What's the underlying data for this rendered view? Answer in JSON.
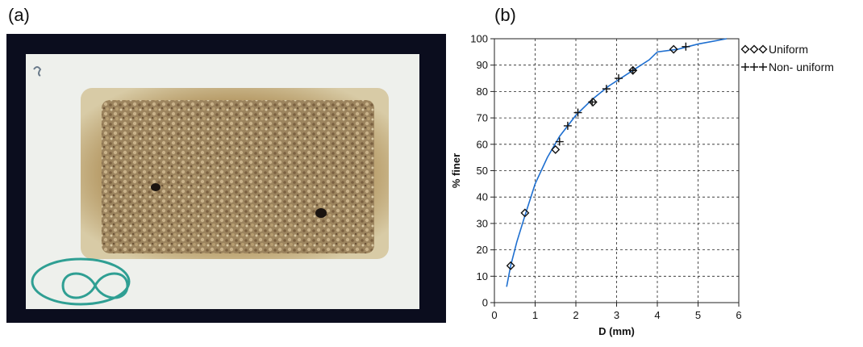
{
  "panels": {
    "a_label": "(a)",
    "b_label": "(b)"
  },
  "photo": {
    "subject": "sand sample on white board",
    "colors": {
      "background": "#0b0d1e",
      "board": "#eef0ec",
      "stain": "#b69a66",
      "sand": "#a48a62",
      "marker": "#2f9f93"
    }
  },
  "chart_data": {
    "type": "line",
    "xlabel": "D (mm)",
    "ylabel": "% finer",
    "xlim": [
      0,
      6
    ],
    "ylim": [
      0,
      100
    ],
    "xticks": [
      0,
      1,
      2,
      3,
      4,
      5,
      6
    ],
    "yticks": [
      0,
      10,
      20,
      30,
      40,
      50,
      60,
      70,
      80,
      90,
      100
    ],
    "grid": "dashed",
    "legend_position": "top-right, outside plot",
    "curve": {
      "color": "#1e6fd0",
      "x": [
        0.3,
        0.4,
        0.55,
        0.75,
        1.0,
        1.3,
        1.6,
        2.0,
        2.4,
        2.8,
        3.2,
        3.5,
        3.8,
        4.0,
        4.5,
        5.0,
        5.7
      ],
      "y": [
        6,
        14,
        23,
        33,
        45,
        55,
        63,
        71,
        77,
        82,
        86,
        89,
        92,
        95,
        96,
        98,
        100
      ]
    },
    "series": [
      {
        "name": "Uniform",
        "legend_label": "Uniform",
        "marker": "diamond",
        "x": [
          0.4,
          0.75,
          1.5,
          2.42,
          3.4,
          4.4
        ],
        "y": [
          14,
          34,
          58,
          76,
          88,
          96
        ]
      },
      {
        "name": "Non- uniform",
        "legend_label": "Non- uniform",
        "marker": "plus",
        "x": [
          1.6,
          1.8,
          2.05,
          2.4,
          2.75,
          3.05,
          3.4,
          4.7
        ],
        "y": [
          61,
          67,
          72,
          76,
          81,
          85,
          88,
          97
        ]
      }
    ]
  }
}
